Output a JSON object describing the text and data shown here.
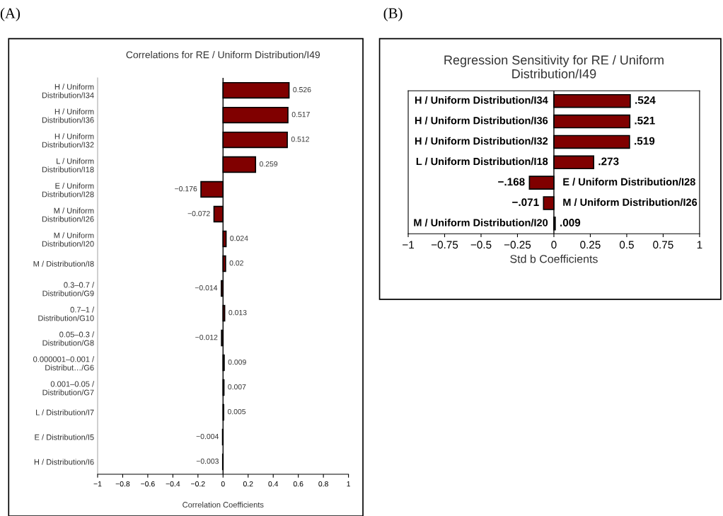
{
  "chart_data": [
    {
      "type": "bar",
      "orientation": "horizontal",
      "title": "Correlations for RE / Uniform Distribution/I49",
      "xlabel": "Correlation Coefficients",
      "annotations": [
        "(A)"
      ],
      "categories": [
        "H / Uniform Distribution/I34",
        "H / Uniform Distribution/I36",
        "H / Uniform Distribution/I32",
        "L / Uniform Distribution/I18",
        "E / Uniform Distribution/I28",
        "M / Uniform Distribution/I26",
        "M / Uniform Distribution/I20",
        "M / Distribution/I8",
        "0.3–0.7 / Distribution/G9",
        "0.7–1 / Distribution/G10",
        "0.05–0.3 / Distribution/G8",
        "0.000001–0.001 / Distribut…/G6",
        "0.001–0.05 / Distribution/G7",
        "L / Distribution/I7",
        "E / Distribution/I5",
        "H / Distribution/I6"
      ],
      "values": [
        0.526,
        0.517,
        0.512,
        0.259,
        -0.176,
        -0.072,
        0.024,
        0.02,
        -0.014,
        0.013,
        -0.012,
        0.009,
        0.007,
        0.005,
        -0.004,
        -0.003
      ],
      "value_labels": [
        "0.526",
        "0.517",
        "0.512",
        "0.259",
        "−0.176",
        "−0.072",
        "0.024",
        "0.02",
        "−0.014",
        "0.013",
        "−0.012",
        "0.009",
        "0.007",
        "0.005",
        "−0.004",
        "−0.003"
      ],
      "color": "#800000",
      "xlim": [
        -1,
        1
      ],
      "xticks": [
        {
          "value": -1,
          "label": "−1"
        },
        {
          "value": -0.8,
          "label": "−0.8"
        },
        {
          "value": -0.6,
          "label": "−0.6"
        },
        {
          "value": -0.4,
          "label": "−0.4"
        },
        {
          "value": -0.2,
          "label": "−0.2"
        },
        0,
        0.2,
        0.4,
        0.6,
        0.8,
        1
      ],
      "ref_lines": [
        {
          "axis": "x",
          "value": 0
        }
      ],
      "grid": false,
      "legend": false
    },
    {
      "type": "bar",
      "orientation": "horizontal",
      "title": "Regression Sensitivity for RE / Uniform Distribution/I49",
      "xlabel": "Std b Coefficients",
      "annotations": [
        "(B)"
      ],
      "tick_labels": "x",
      "categories": [
        "H / Uniform Distribution/I34",
        "H / Uniform Distribution/I36",
        "H / Uniform Distribution/I32",
        "L / Uniform Distribution/I18",
        "E / Uniform Distribution/I28",
        "M / Uniform Distribution/I26",
        "M / Uniform Distribution/I20"
      ],
      "values": [
        0.524,
        0.521,
        0.519,
        0.273,
        -0.168,
        -0.071,
        0.009
      ],
      "value_labels": [
        ".524",
        ".521",
        ".519",
        ".273",
        "−.168",
        "−.071",
        ".009"
      ],
      "color": "#800000",
      "xlim": [
        -1,
        1
      ],
      "xticks": [
        {
          "value": -1,
          "label": "−1"
        },
        {
          "value": -0.75,
          "label": "−0.75"
        },
        {
          "value": -0.5,
          "label": "−0.5"
        },
        {
          "value": -0.25,
          "label": "−0.25"
        },
        0,
        0.25,
        0.5,
        0.75,
        1
      ],
      "ref_lines": [
        {
          "axis": "x",
          "value": 0
        }
      ],
      "grid": false,
      "legend": false
    }
  ]
}
